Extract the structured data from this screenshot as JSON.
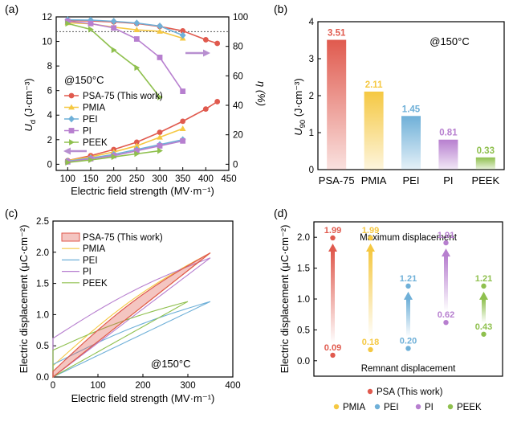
{
  "colors": {
    "psa": "#e05a4e",
    "pmia": "#f5c842",
    "pei": "#6fb0d8",
    "pi": "#b77fcf",
    "peek": "#8fc04e",
    "axis": "#000000"
  },
  "chart_data": [
    {
      "panel": "(a)",
      "type": "line",
      "xlabel": "Electric field strength (MV·m⁻¹)",
      "ylabel_left": "U_d (J·cm⁻³)",
      "ylabel_right": "η (%)",
      "xlim": [
        75,
        450
      ],
      "ylim_left": [
        -0.5,
        12
      ],
      "ylim_right": [
        -4.17,
        100
      ],
      "xticks": [
        "100",
        "150",
        "200",
        "250",
        "300",
        "350",
        "400",
        "450"
      ],
      "yticks_left": [
        "0",
        "2",
        "4",
        "6",
        "8",
        "10",
        "12"
      ],
      "yticks_right": [
        "0",
        "20",
        "40",
        "60",
        "80",
        "100"
      ],
      "annotation": "@150°C",
      "reference_line_eta": 90,
      "legend": [
        "PSA-75 (This work)",
        "PMIA",
        "PEI",
        "PI",
        "PEEK"
      ],
      "series": [
        {
          "name": "PSA-75 (This work)",
          "color": "psa",
          "marker": "circle",
          "Ud": {
            "x": [
              100,
              150,
              200,
              250,
              300,
              350,
              400,
              425
            ],
            "y": [
              0.3,
              0.7,
              1.2,
              1.8,
              2.6,
              3.5,
              4.5,
              5.1
            ]
          },
          "eta": {
            "x": [
              100,
              150,
              200,
              250,
              300,
              350,
              400,
              425
            ],
            "y": [
              97.5,
              97.2,
              96.6,
              95.5,
              93.5,
              90.5,
              84.5,
              82.0
            ]
          }
        },
        {
          "name": "PMIA",
          "color": "pmia",
          "marker": "triangle",
          "Ud": {
            "x": [
              100,
              150,
              200,
              250,
              300,
              350
            ],
            "y": [
              0.3,
              0.6,
              1.0,
              1.5,
              2.2,
              2.9
            ]
          },
          "eta": {
            "x": [
              100,
              150,
              200,
              250,
              300,
              350
            ],
            "y": [
              96.0,
              95.3,
              93.0,
              91.2,
              90.2,
              85.5
            ]
          }
        },
        {
          "name": "PEI",
          "color": "pei",
          "marker": "diamond",
          "Ud": {
            "x": [
              100,
              150,
              200,
              250,
              300,
              350
            ],
            "y": [
              0.25,
              0.5,
              0.8,
              1.2,
              1.6,
              2.0
            ]
          },
          "eta": {
            "x": [
              100,
              150,
              200,
              250,
              300,
              350
            ],
            "y": [
              98.0,
              97.8,
              97.0,
              95.8,
              93.8,
              87.5
            ]
          }
        },
        {
          "name": "PI",
          "color": "pi",
          "marker": "square",
          "Ud": {
            "x": [
              100,
              150,
              200,
              250,
              300,
              350
            ],
            "y": [
              0.2,
              0.45,
              0.7,
              1.1,
              1.5,
              1.9
            ]
          },
          "eta": {
            "x": [
              100,
              150,
              200,
              250,
              300,
              350
            ],
            "y": [
              97.0,
              95.5,
              92.5,
              85.0,
              72.5,
              49.5
            ]
          }
        },
        {
          "name": "PEEK",
          "color": "peek",
          "marker": "triangle-right",
          "Ud": {
            "x": [
              100,
              150,
              200,
              250,
              300
            ],
            "y": [
              0.15,
              0.35,
              0.6,
              0.85,
              1.1
            ]
          },
          "eta": {
            "x": [
              100,
              150,
              200,
              250,
              300
            ],
            "y": [
              95.5,
              91.5,
              77.5,
              65.5,
              45.5
            ]
          }
        }
      ]
    },
    {
      "panel": "(b)",
      "type": "bar",
      "ylabel": "U_90 (J·cm⁻³)",
      "ylim": [
        0,
        4
      ],
      "yticks": [
        "0",
        "1",
        "2",
        "3",
        "4"
      ],
      "annotation": "@150°C",
      "categories": [
        "PSA-75",
        "PMIA",
        "PEI",
        "PI",
        "PEEK"
      ],
      "values": [
        3.51,
        2.11,
        1.45,
        0.81,
        0.33
      ],
      "value_labels": [
        "3.51",
        "2.11",
        "1.45",
        "0.81",
        "0.33"
      ],
      "colors": [
        "psa",
        "pmia",
        "pei",
        "pi",
        "peek"
      ]
    },
    {
      "panel": "(c)",
      "type": "line",
      "xlabel": "Electric field strength (MV·m⁻¹)",
      "ylabel": "Electric displacement (μC·cm⁻²)",
      "xlim": [
        0,
        400
      ],
      "ylim": [
        0,
        2.5
      ],
      "xticks": [
        "0",
        "100",
        "200",
        "300",
        "400"
      ],
      "yticks": [
        "0.0",
        "0.5",
        "1.0",
        "1.5",
        "2.0",
        "2.5"
      ],
      "annotation": "@150°C",
      "legend": [
        "PSA-75 (This work)",
        "PMIA",
        "PEI",
        "PI",
        "PEEK"
      ],
      "loops": [
        {
          "name": "PSA-75 (This work)",
          "color": "psa",
          "Emax": 350,
          "Dmax": 1.99,
          "Dr": 0.09,
          "filled": true
        },
        {
          "name": "PMIA",
          "color": "pmia",
          "Emax": 350,
          "Dmax": 1.99,
          "Dr": 0.18
        },
        {
          "name": "PEI",
          "color": "pei",
          "Emax": 350,
          "Dmax": 1.21,
          "Dr": 0.2
        },
        {
          "name": "PI",
          "color": "pi",
          "Emax": 350,
          "Dmax": 1.91,
          "Dr": 0.62
        },
        {
          "name": "PEEK",
          "color": "peek",
          "Emax": 300,
          "Dmax": 1.21,
          "Dr": 0.43
        }
      ]
    },
    {
      "panel": "(d)",
      "type": "scatter",
      "ylabel": "Electric displacement (μC·cm⁻²)",
      "ylim": [
        -0.25,
        2.25
      ],
      "yticks": [
        "0.0",
        "0.5",
        "1.0",
        "1.5",
        "2.0"
      ],
      "top_label": "Maximum displacement",
      "bottom_label": "Remnant displacement",
      "legend": [
        "PSA (This work)",
        "PMIA",
        "PEI",
        "PI",
        "PEEK"
      ],
      "series": [
        {
          "name": "PSA (This work)",
          "color": "psa",
          "max": 1.99,
          "remnant": 0.09,
          "max_label": "1.99",
          "remnant_label": "0.09"
        },
        {
          "name": "PMIA",
          "color": "pmia",
          "max": 1.99,
          "remnant": 0.18,
          "max_label": "1.99",
          "remnant_label": "0.18"
        },
        {
          "name": "PEI",
          "color": "pei",
          "max": 1.21,
          "remnant": 0.2,
          "max_label": "1.21",
          "remnant_label": "0.20"
        },
        {
          "name": "PI",
          "color": "pi",
          "max": 1.91,
          "remnant": 0.62,
          "max_label": "1.91",
          "remnant_label": "0.62"
        },
        {
          "name": "PEEK",
          "color": "peek",
          "max": 1.21,
          "remnant": 0.43,
          "max_label": "1.21",
          "remnant_label": "0.43"
        }
      ]
    }
  ]
}
